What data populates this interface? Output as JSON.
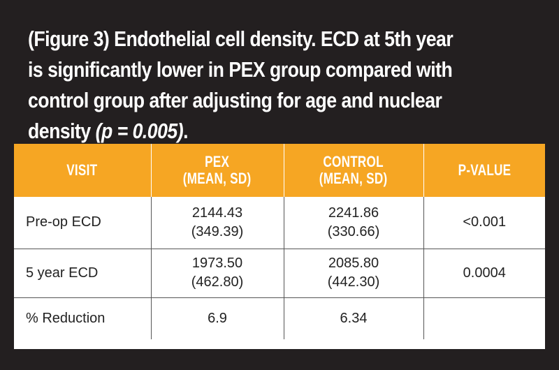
{
  "caption": {
    "line1": "(Figure 3) Endothelial cell density. ECD at 5th year",
    "line2": "is significantly lower in PEX group compared with",
    "line3": "control group after adjusting for age and nuclear",
    "line4_prefix": "density ",
    "line4_italic": "(p = 0.005)",
    "line4_suffix": "."
  },
  "table": {
    "headers": {
      "visit": "VISIT",
      "pex_line1": "PEX",
      "pex_line2": "(MEAN, SD)",
      "control_line1": "CONTROL",
      "control_line2": "(MEAN, SD)",
      "pvalue": "P-VALUE"
    },
    "rows": [
      {
        "visit": "Pre-op ECD",
        "pex_mean": "2144.43",
        "pex_sd": "(349.39)",
        "control_mean": "2241.86",
        "control_sd": "(330.66)",
        "pvalue": "<0.001"
      },
      {
        "visit": "5 year ECD",
        "pex_mean": "1973.50",
        "pex_sd": "(462.80)",
        "control_mean": "2085.80",
        "control_sd": "(442.30)",
        "pvalue": "0.0004"
      },
      {
        "visit": "% Reduction",
        "pex": "6.9",
        "control": "6.34",
        "pvalue": ""
      }
    ]
  },
  "colors": {
    "background": "#231f20",
    "header": "#f6a623",
    "caption_text": "#ffffff",
    "cell_text": "#222222"
  }
}
